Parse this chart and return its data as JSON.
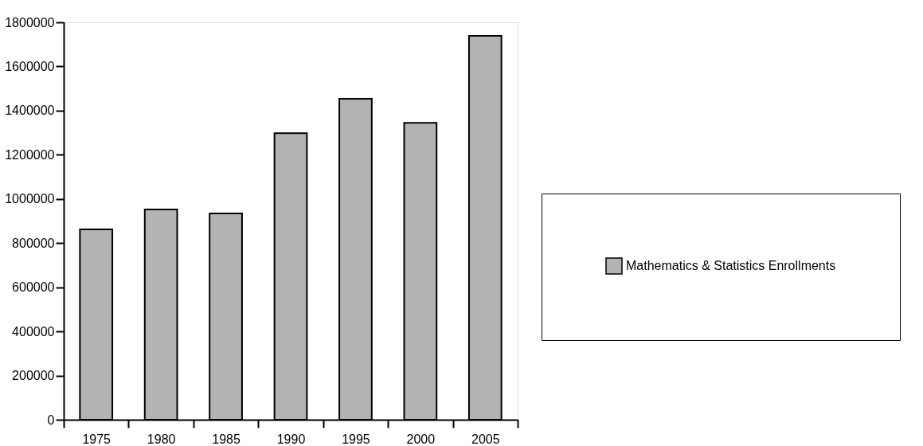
{
  "chart_data": {
    "type": "bar",
    "categories": [
      "1975",
      "1980",
      "1985",
      "1990",
      "1995",
      "2000",
      "2005"
    ],
    "series": [
      {
        "name": "Mathematics & Statistics Enrollments",
        "color": "#b3b3b3",
        "values": [
          862000,
          952000,
          934000,
          1298000,
          1454000,
          1345000,
          1739000
        ]
      }
    ],
    "ylim": [
      0,
      1800000
    ],
    "yticks": [
      0,
      200000,
      400000,
      600000,
      800000,
      1000000,
      1200000,
      1400000,
      1600000,
      1800000
    ],
    "grid": false,
    "legend": "right"
  }
}
